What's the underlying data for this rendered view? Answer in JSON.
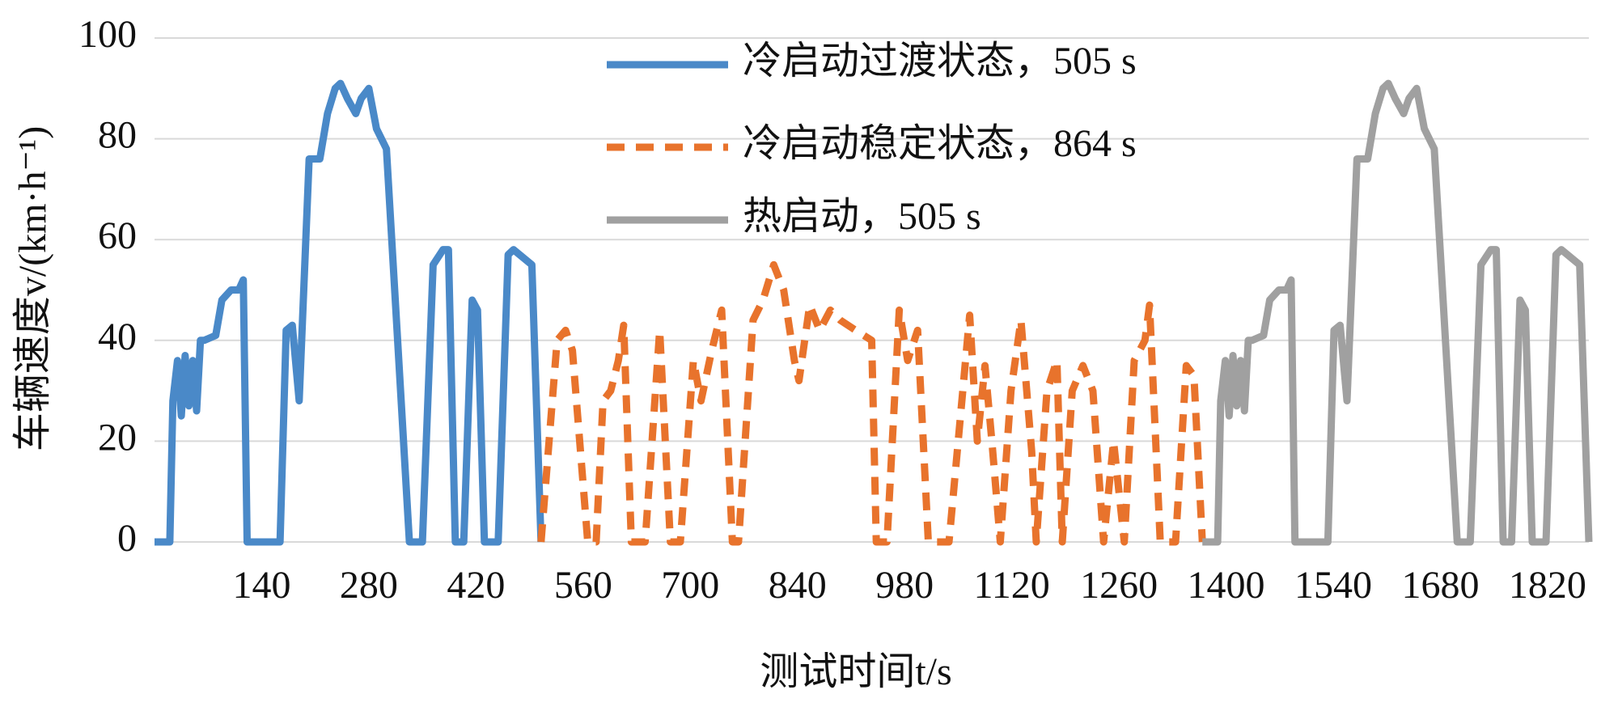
{
  "chart_data": {
    "type": "line",
    "xlabel": "测试时间t/s",
    "ylabel": "车辆速度v/(km·h⁻¹)",
    "xlim": [
      0,
      1874
    ],
    "ylim": [
      0,
      100
    ],
    "xticks": [
      140,
      280,
      420,
      560,
      700,
      840,
      980,
      1120,
      1260,
      1400,
      1540,
      1680,
      1820
    ],
    "yticks": [
      0,
      20,
      40,
      60,
      80,
      100
    ],
    "grid": true,
    "series": [
      {
        "name": "冷启动过渡状态，505 s",
        "color": "#4a89c8",
        "dashed": false,
        "x": [
          0,
          20,
          24,
          30,
          35,
          40,
          45,
          50,
          55,
          60,
          65,
          80,
          88,
          100,
          110,
          116,
          121,
          164,
          172,
          180,
          189,
          202,
          216,
          226,
          236,
          243,
          252,
          263,
          270,
          280,
          290,
          303,
          333,
          350,
          364,
          377,
          384,
          393,
          404,
          415,
          422,
          431,
          449,
          462,
          469,
          485,
          493,
          505
        ],
        "values": [
          0,
          0,
          28,
          36,
          25,
          37,
          27,
          36,
          26,
          40,
          40,
          41,
          48,
          50,
          50,
          52,
          0,
          0,
          42,
          43,
          28,
          76,
          76,
          85,
          90,
          91,
          88,
          85,
          88,
          90,
          82,
          78,
          0,
          0,
          55,
          58,
          58,
          0,
          0,
          48,
          46,
          0,
          0,
          57,
          58,
          56,
          55,
          0
        ]
      },
      {
        "name": "冷启动稳定状态，864 s",
        "color": "#e8732c",
        "dashed": true,
        "x": [
          505,
          526,
          537,
          546,
          566,
          577,
          586,
          596,
          606,
          613,
          623,
          641,
          660,
          674,
          687,
          704,
          714,
          728,
          741,
          755,
          763,
          782,
          795,
          809,
          822,
          836,
          842,
          856,
          869,
          883,
          896,
          916,
          937,
          943,
          957,
          973,
          984,
          997,
          1011,
          1038,
          1065,
          1075,
          1085,
          1094,
          1105,
          1119,
          1132,
          1146,
          1152,
          1166,
          1179,
          1186,
          1199,
          1213,
          1226,
          1240,
          1253,
          1267,
          1280,
          1294,
          1300,
          1314,
          1334,
          1348,
          1358,
          1369
        ],
        "values": [
          0,
          40,
          42,
          38,
          0,
          0,
          28,
          30,
          36,
          43,
          0,
          0,
          42,
          0,
          0,
          36,
          28,
          38,
          46,
          0,
          0,
          44,
          48,
          55,
          50,
          36,
          32,
          47,
          42,
          46,
          44,
          42,
          40,
          0,
          0,
          46,
          36,
          42,
          0,
          0,
          45,
          20,
          35,
          20,
          0,
          30,
          44,
          18,
          0,
          30,
          36,
          0,
          30,
          35,
          30,
          0,
          20,
          0,
          36,
          40,
          47,
          0,
          0,
          35,
          33,
          0
        ]
      },
      {
        "name": "热启动，505 s",
        "color": "#a0a0a0",
        "dashed": false,
        "x": [
          1369,
          1389,
          1393,
          1399,
          1404,
          1409,
          1414,
          1419,
          1424,
          1429,
          1434,
          1449,
          1457,
          1469,
          1479,
          1485,
          1490,
          1533,
          1541,
          1549,
          1558,
          1571,
          1585,
          1595,
          1605,
          1612,
          1621,
          1632,
          1639,
          1649,
          1659,
          1672,
          1702,
          1719,
          1733,
          1746,
          1753,
          1762,
          1773,
          1784,
          1791,
          1800,
          1818,
          1831,
          1838,
          1854,
          1862,
          1874
        ],
        "values": [
          0,
          0,
          28,
          36,
          25,
          37,
          27,
          36,
          26,
          40,
          40,
          41,
          48,
          50,
          50,
          52,
          0,
          0,
          42,
          43,
          28,
          76,
          76,
          85,
          90,
          91,
          88,
          85,
          88,
          90,
          82,
          78,
          0,
          0,
          55,
          58,
          58,
          0,
          0,
          48,
          46,
          0,
          0,
          57,
          58,
          56,
          55,
          0
        ]
      }
    ]
  }
}
